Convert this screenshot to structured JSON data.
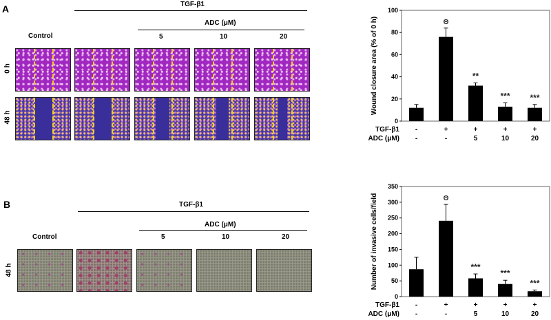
{
  "panel_a": {
    "label": "A",
    "tgf_header": "TGF-β1",
    "adc_header": "ADC (μM)",
    "control_label": "Control",
    "doses": [
      "5",
      "10",
      "20"
    ],
    "row_labels": [
      "0 h",
      "48 h"
    ]
  },
  "panel_b": {
    "label": "B",
    "tgf_header": "TGF-β1",
    "adc_header": "ADC (μM)",
    "control_label": "Control",
    "doses": [
      "5",
      "10",
      "20"
    ],
    "row_labels": [
      "48 h"
    ]
  },
  "chart_data": [
    {
      "type": "bar",
      "ylabel": "Wound closure area (% of 0 h)",
      "ylim": [
        0,
        100
      ],
      "yticks": [
        0,
        20,
        40,
        60,
        80,
        100
      ],
      "row_labels": [
        "TGF-β1",
        "ADC (μM)"
      ],
      "categories_tgf": [
        "-",
        "+",
        "+",
        "+",
        "+"
      ],
      "categories_adc": [
        "-",
        "-",
        "5",
        "10",
        "20"
      ],
      "values": [
        12,
        76,
        32,
        13,
        12
      ],
      "errors": [
        3,
        8,
        2.5,
        3.5,
        3
      ],
      "annotations": [
        "",
        "Θ",
        "**",
        "***",
        "***"
      ]
    },
    {
      "type": "bar",
      "ylabel": "Number of invasive cells/field",
      "ylim": [
        0,
        350
      ],
      "yticks": [
        0,
        50,
        100,
        150,
        200,
        250,
        300,
        350
      ],
      "row_labels": [
        "TGF-β1",
        "ADC (μM)"
      ],
      "categories_tgf": [
        "-",
        "+",
        "+",
        "+",
        "+"
      ],
      "categories_adc": [
        "-",
        "-",
        "5",
        "10",
        "20"
      ],
      "values": [
        87,
        241,
        58,
        40,
        17
      ],
      "errors": [
        38,
        52,
        14,
        12,
        4
      ],
      "annotations": [
        "",
        "Θ",
        "***",
        "***",
        "***"
      ]
    }
  ]
}
